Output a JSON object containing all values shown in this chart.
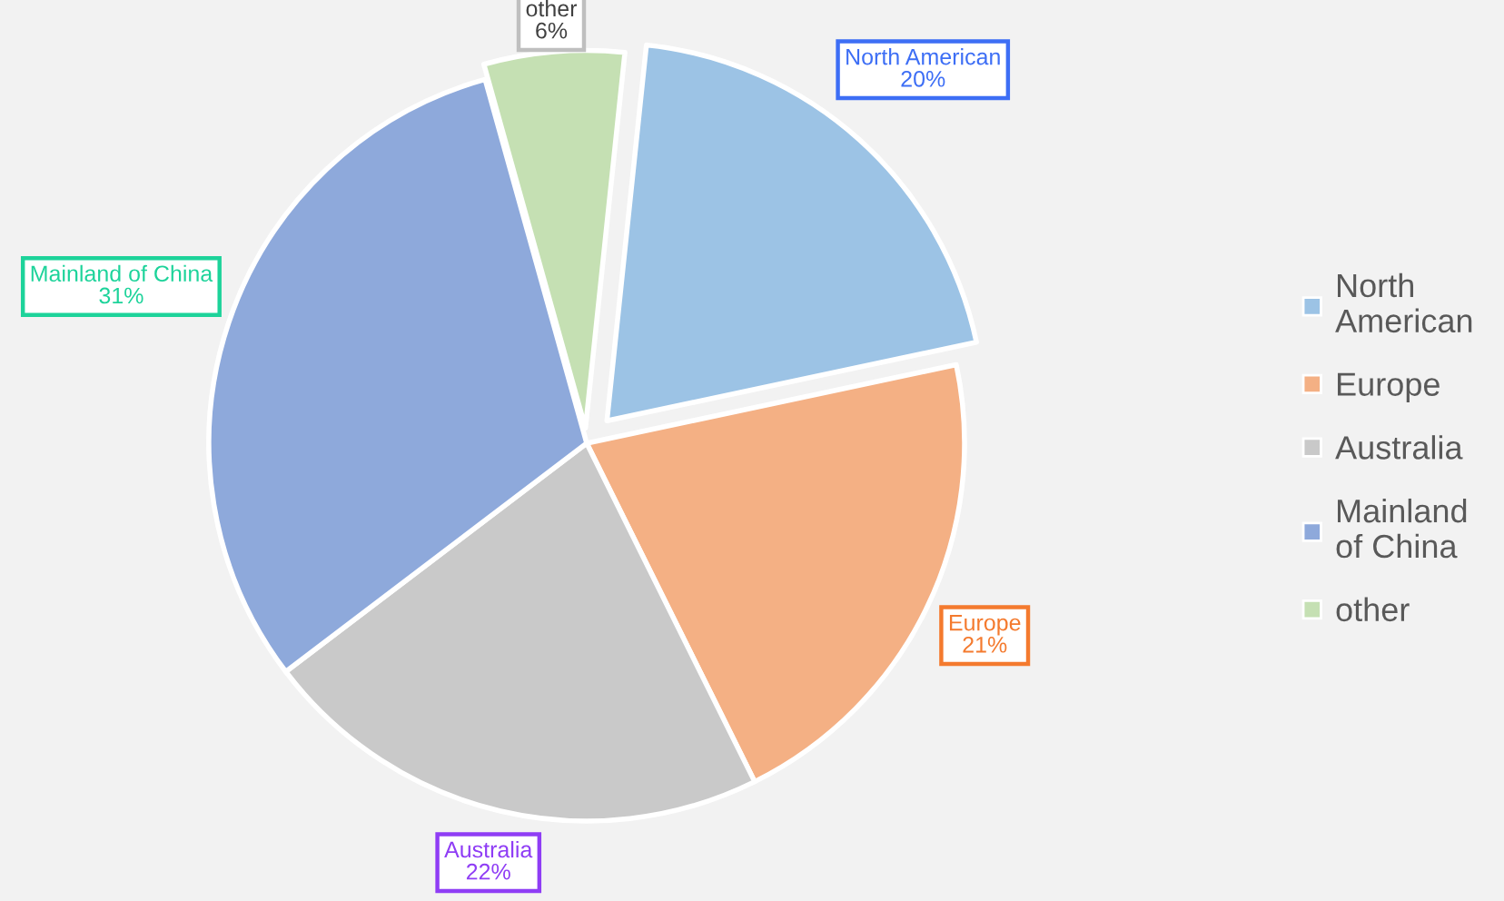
{
  "chart_data": {
    "type": "pie",
    "categories": [
      "North American",
      "Europe",
      "Australia",
      "Mainland of China",
      "other"
    ],
    "values": [
      20,
      21,
      22,
      31,
      6
    ],
    "value_labels": [
      "20%",
      "21%",
      "22%",
      "31%",
      "6%"
    ],
    "colors": [
      "#9cc3e5",
      "#f4b084",
      "#c9c9c9",
      "#8ea9db",
      "#c5e0b3"
    ],
    "legend": "right"
  }
}
